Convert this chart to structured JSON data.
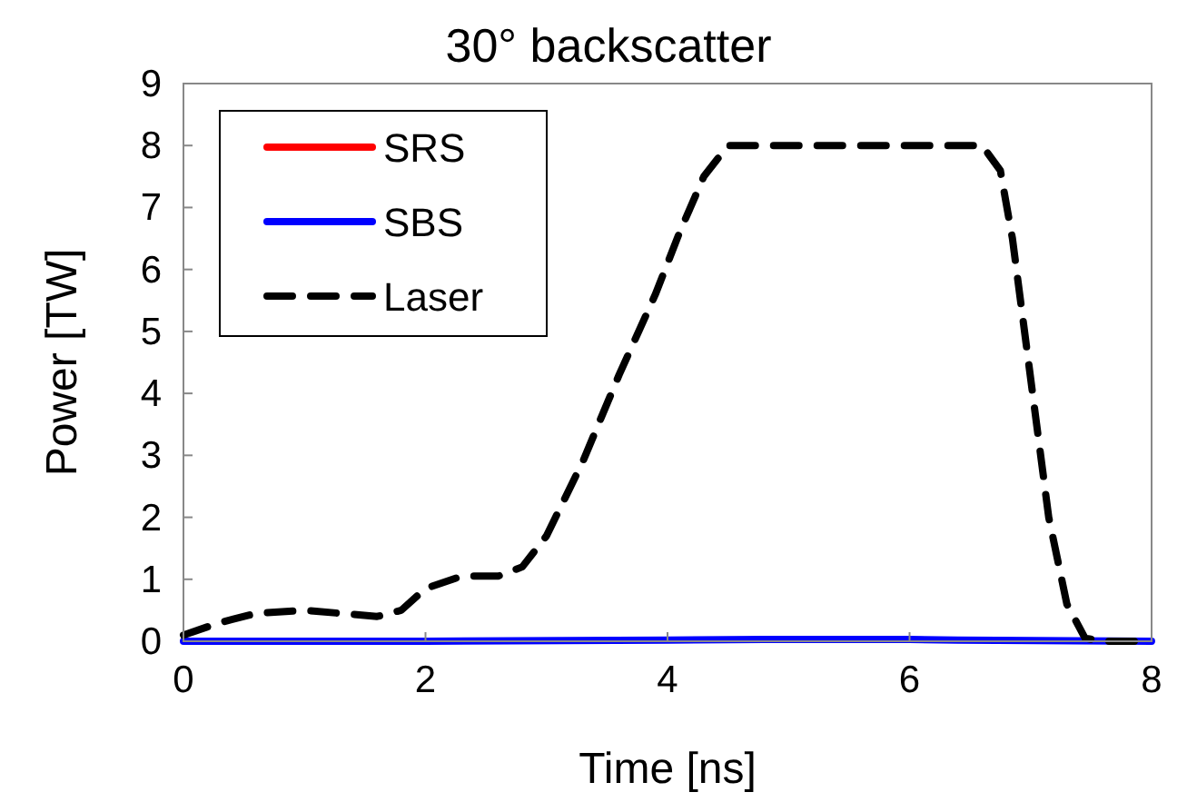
{
  "chart_data": {
    "type": "line",
    "title": "30° backscatter",
    "xlabel": "Time [ns]",
    "ylabel": "Power [TW]",
    "xlim": [
      0,
      8
    ],
    "ylim": [
      0,
      9
    ],
    "xticks": [
      0,
      2,
      4,
      6,
      8
    ],
    "yticks": [
      0,
      1,
      2,
      3,
      4,
      5,
      6,
      7,
      8,
      9
    ],
    "grid": false,
    "legend": "top left",
    "series": [
      {
        "name": "SRS",
        "color": "#ff0000",
        "line_style": "solid"
      },
      {
        "name": "SBS",
        "color": "#0000ff",
        "line_style": "solid",
        "x": [
          0,
          2,
          4,
          4.8,
          5.3,
          6,
          6.4,
          8
        ],
        "values": [
          0,
          0,
          0.02,
          0.03,
          0.03,
          0.03,
          0.02,
          0
        ]
      },
      {
        "name": "Laser",
        "color": "#000000",
        "line_style": "dashed",
        "x": [
          0,
          0.3,
          0.6,
          1,
          1.3,
          1.6,
          1.8,
          2,
          2.3,
          2.6,
          2.8,
          3,
          3.3,
          3.6,
          3.9,
          4.1,
          4.3,
          4.5,
          5,
          6,
          6.6,
          6.75,
          6.85,
          6.95,
          7.05,
          7.15,
          7.3,
          7.45,
          7.6,
          8
        ],
        "values": [
          0.1,
          0.3,
          0.45,
          0.5,
          0.45,
          0.4,
          0.5,
          0.85,
          1.05,
          1.05,
          1.2,
          1.7,
          2.9,
          4.3,
          5.6,
          6.6,
          7.5,
          8,
          8,
          8,
          8,
          7.6,
          6.5,
          5,
          3.5,
          2,
          0.6,
          0.05,
          0,
          0
        ]
      }
    ]
  }
}
